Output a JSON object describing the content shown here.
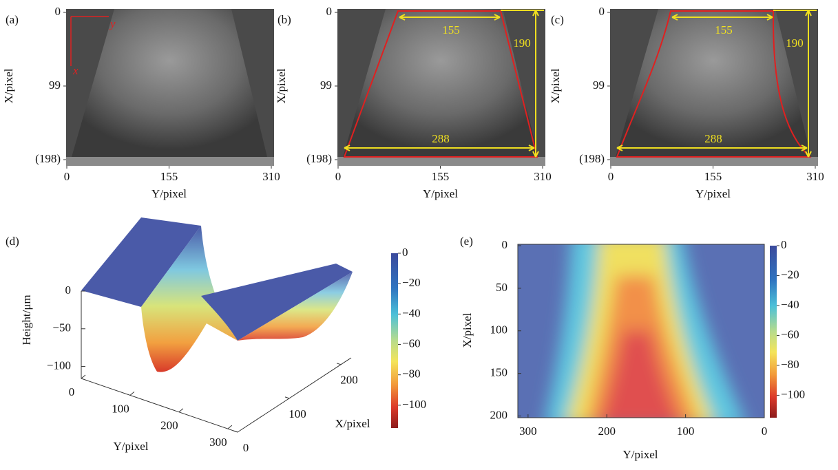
{
  "panels": [
    {
      "label": "(a)",
      "xlabel": "Y/pixel",
      "ylabel": "X/pixel",
      "xlim": [
        0,
        310
      ],
      "ylim": [
        0,
        198
      ],
      "xticks": [
        0,
        155,
        310
      ],
      "yticks": [
        0,
        99,
        {
          "value": 198,
          "label": "(198)"
        }
      ],
      "annotations": [
        "y",
        "x"
      ]
    },
    {
      "label": "(b)",
      "xlabel": "Y/pixel",
      "ylabel": "X/pixel",
      "xlim": [
        0,
        310
      ],
      "ylim": [
        0,
        198
      ],
      "xticks": [
        0,
        155,
        310
      ],
      "yticks": [
        0,
        99,
        {
          "value": 198,
          "label": "(198)"
        }
      ],
      "annotations": [
        "155",
        "190",
        "288"
      ]
    },
    {
      "label": "(c)",
      "xlabel": "Y/pixel",
      "ylabel": "X/pixel",
      "xlim": [
        0,
        310
      ],
      "ylim": [
        0,
        198
      ],
      "xticks": [
        0,
        155,
        310
      ],
      "yticks": [
        0,
        99,
        {
          "value": 198,
          "label": "(198)"
        }
      ],
      "annotations": [
        "155",
        "190",
        "288"
      ]
    },
    {
      "label": "(d)",
      "zlabel": "Height/μm",
      "xlabel": "X/pixel",
      "ylabel": "Y/pixel",
      "zlim": [
        -115,
        0
      ],
      "zticks": [
        0,
        {
          "value": -50,
          "label": "−50"
        },
        {
          "value": -100,
          "label": "−100"
        }
      ],
      "ylim": [
        0,
        320
      ],
      "yticks": [
        0,
        100,
        200,
        300
      ],
      "xlim": [
        0,
        220
      ],
      "xticks": [
        0,
        100,
        200
      ],
      "clim": [
        -115,
        0
      ],
      "cticks": [
        0,
        {
          "value": -20,
          "label": "−20"
        },
        {
          "value": -40,
          "label": "−40"
        },
        {
          "value": -60,
          "label": "−60"
        },
        {
          "value": -80,
          "label": "−80"
        },
        {
          "value": -100,
          "label": "−100"
        }
      ]
    },
    {
      "label": "(e)",
      "xlabel": "Y/pixel",
      "ylabel": "X/pixel",
      "xlim": [
        313,
        0
      ],
      "xticks": [
        300,
        200,
        100,
        0
      ],
      "ylim": [
        0,
        202
      ],
      "yticks": [
        0,
        50,
        100,
        150,
        200
      ],
      "clim": [
        -115,
        0
      ],
      "cticks": [
        0,
        {
          "value": -20,
          "label": "−20"
        },
        {
          "value": -40,
          "label": "−40"
        },
        {
          "value": -60,
          "label": "−60"
        },
        {
          "value": -80,
          "label": "−80"
        },
        {
          "value": -100,
          "label": "−100"
        }
      ]
    }
  ]
}
